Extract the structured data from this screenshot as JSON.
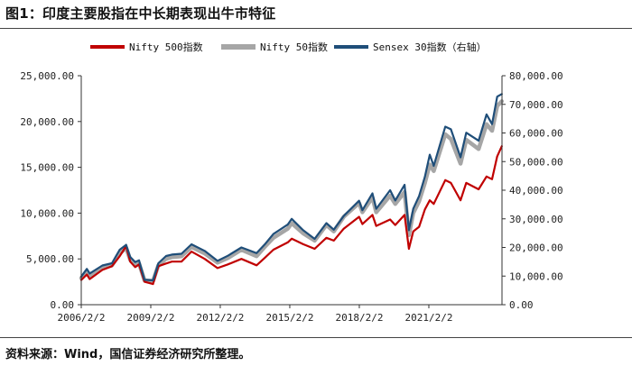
{
  "header": {
    "title": "图1：印度主要股指在中长期表现出牛市特征"
  },
  "footer": {
    "source": "资料来源：Wind，国信证券经济研究所整理。"
  },
  "chart_data": {
    "type": "line",
    "title": "",
    "xlabel": "",
    "ylabel_left": "",
    "ylabel_right": "",
    "x_ticks": [
      "2006/2/2",
      "2009/2/2",
      "2012/2/2",
      "2015/2/2",
      "2018/2/2",
      "2021/2/2"
    ],
    "x_range": [
      "2006/2/2",
      "2024/3/31"
    ],
    "y_left_range": [
      0,
      25000
    ],
    "y_left_ticks": [
      "0.00",
      "5,000.00",
      "10,000.00",
      "15,000.00",
      "20,000.00",
      "25,000.00"
    ],
    "y_right_range": [
      0,
      80000
    ],
    "y_right_ticks": [
      "0.00",
      "10,000.00",
      "20,000.00",
      "30,000.00",
      "40,000.00",
      "50,000.00",
      "60,000.00",
      "70,000.00",
      "80,000.00"
    ],
    "grid": false,
    "legend_position": "top",
    "series": [
      {
        "name": "Nifty 500指数",
        "axis": "left",
        "color": "#c00000",
        "x": [
          "2006/2/2",
          "2006/5/1",
          "2006/6/15",
          "2007/1/1",
          "2007/6/1",
          "2007/10/1",
          "2008/1/10",
          "2008/3/15",
          "2008/6/1",
          "2008/8/1",
          "2008/10/27",
          "2009/3/9",
          "2009/6/1",
          "2009/10/1",
          "2010/1/1",
          "2010/6/1",
          "2010/11/5",
          "2011/6/1",
          "2011/12/20",
          "2012/6/1",
          "2013/1/1",
          "2013/8/28",
          "2014/1/1",
          "2014/5/20",
          "2015/1/1",
          "2015/3/4",
          "2015/9/1",
          "2016/2/29",
          "2016/9/1",
          "2016/12/26",
          "2017/6/1",
          "2018/1/29",
          "2018/3/23",
          "2018/8/28",
          "2018/10/26",
          "2019/6/3",
          "2019/8/23",
          "2020/1/17",
          "2020/3/24",
          "2020/6/1",
          "2020/9/1",
          "2020/12/1",
          "2021/2/16",
          "2021/4/20",
          "2021/10/19",
          "2022/1/15",
          "2022/6/17",
          "2022/9/15",
          "2023/3/28",
          "2023/7/31",
          "2023/10/26",
          "2024/1/15",
          "2024/3/28"
        ],
        "values": [
          2700,
          3300,
          2800,
          3800,
          4200,
          5300,
          6400,
          4700,
          4100,
          4400,
          2500,
          2250,
          4200,
          4500,
          4700,
          4700,
          5800,
          5000,
          4000,
          4400,
          5000,
          4300,
          5100,
          6000,
          6800,
          7200,
          6600,
          6100,
          7300,
          7000,
          8300,
          9600,
          8800,
          9800,
          8600,
          9300,
          8700,
          9800,
          6100,
          8000,
          8500,
          10400,
          11400,
          11000,
          13600,
          13300,
          11400,
          13300,
          12600,
          14000,
          13700,
          16200,
          17300
        ]
      },
      {
        "name": "Nifty 50指数",
        "axis": "left",
        "color": "#a6a6a6",
        "x": [
          "2006/2/2",
          "2006/5/1",
          "2006/6/15",
          "2007/1/1",
          "2007/6/1",
          "2007/10/1",
          "2008/1/10",
          "2008/3/15",
          "2008/6/1",
          "2008/8/1",
          "2008/10/27",
          "2009/3/9",
          "2009/6/1",
          "2009/10/1",
          "2010/1/1",
          "2010/6/1",
          "2010/11/5",
          "2011/6/1",
          "2011/12/20",
          "2012/6/1",
          "2013/1/1",
          "2013/8/28",
          "2014/1/1",
          "2014/5/20",
          "2015/1/1",
          "2015/3/4",
          "2015/9/1",
          "2016/2/29",
          "2016/9/1",
          "2016/12/26",
          "2017/6/1",
          "2018/1/29",
          "2018/3/23",
          "2018/8/28",
          "2018/10/26",
          "2019/6/3",
          "2019/8/23",
          "2020/1/17",
          "2020/3/24",
          "2020/6/1",
          "2020/9/1",
          "2020/12/1",
          "2021/2/16",
          "2021/4/20",
          "2021/10/19",
          "2022/1/15",
          "2022/6/17",
          "2022/9/15",
          "2023/3/28",
          "2023/7/31",
          "2023/10/26",
          "2024/1/15",
          "2024/3/28"
        ],
        "values": [
          2900,
          3700,
          3200,
          4000,
          4300,
          5600,
          6200,
          4900,
          4300,
          4500,
          2650,
          2600,
          4300,
          5000,
          5200,
          5300,
          6300,
          5600,
          4600,
          5100,
          6000,
          5300,
          6300,
          7300,
          8300,
          8900,
          7800,
          7000,
          8700,
          8000,
          9600,
          11100,
          10100,
          11700,
          10100,
          11900,
          11000,
          12300,
          7600,
          10000,
          11300,
          13300,
          15300,
          14600,
          18600,
          18100,
          15400,
          18000,
          17000,
          19700,
          19000,
          21700,
          22200
        ]
      },
      {
        "name": "Sensex 30指数（右轴）",
        "axis": "right",
        "color": "#1f4e79",
        "x": [
          "2006/2/2",
          "2006/5/1",
          "2006/6/15",
          "2007/1/1",
          "2007/6/1",
          "2007/10/1",
          "2008/1/10",
          "2008/3/15",
          "2008/6/1",
          "2008/8/1",
          "2008/10/27",
          "2009/3/9",
          "2009/6/1",
          "2009/10/1",
          "2010/1/1",
          "2010/6/1",
          "2010/11/5",
          "2011/6/1",
          "2011/12/20",
          "2012/6/1",
          "2013/1/1",
          "2013/8/28",
          "2014/1/1",
          "2014/5/20",
          "2015/1/1",
          "2015/3/4",
          "2015/9/1",
          "2016/2/29",
          "2016/9/1",
          "2016/12/26",
          "2017/6/1",
          "2018/1/29",
          "2018/3/23",
          "2018/8/28",
          "2018/10/26",
          "2019/6/3",
          "2019/8/23",
          "2020/1/17",
          "2020/3/24",
          "2020/6/1",
          "2020/9/1",
          "2020/12/1",
          "2021/2/16",
          "2021/4/20",
          "2021/10/19",
          "2022/1/15",
          "2022/6/17",
          "2022/9/15",
          "2023/3/28",
          "2023/7/31",
          "2023/10/26",
          "2024/1/15",
          "2024/3/28"
        ],
        "values": [
          9800,
          12500,
          10900,
          13700,
          14500,
          19200,
          20900,
          16700,
          14900,
          15500,
          8700,
          8500,
          14500,
          17000,
          17500,
          17800,
          21100,
          18800,
          15300,
          17100,
          20000,
          18000,
          21000,
          24700,
          28000,
          30000,
          26000,
          23000,
          28500,
          26200,
          31000,
          36300,
          33000,
          38900,
          33500,
          40000,
          36400,
          41900,
          26000,
          33500,
          38000,
          44700,
          52400,
          48500,
          62200,
          61300,
          51500,
          60100,
          57300,
          66500,
          63100,
          72700,
          73600
        ]
      }
    ]
  }
}
